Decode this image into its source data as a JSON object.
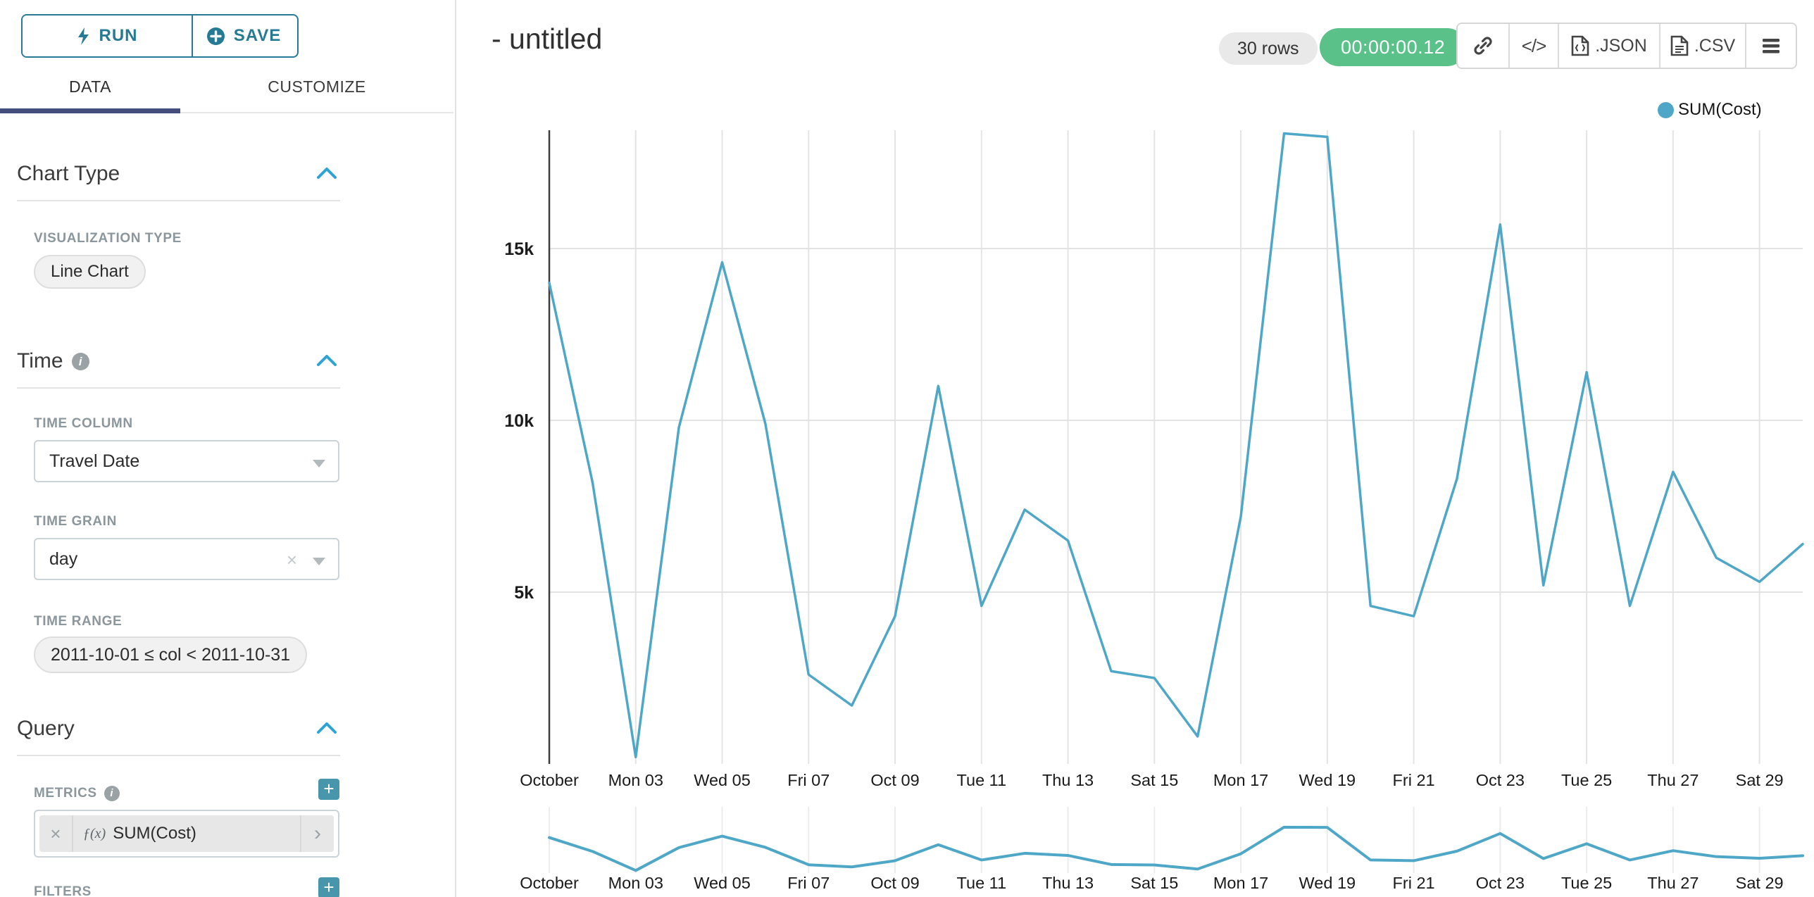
{
  "sidebar": {
    "run_button": "RUN",
    "save_button": "SAVE",
    "tabs": {
      "data": "DATA",
      "customize": "CUSTOMIZE"
    },
    "chart_type_section": {
      "title": "Chart Type",
      "visualization_type_label": "VISUALIZATION TYPE",
      "visualization_type_value": "Line Chart"
    },
    "time_section": {
      "title": "Time",
      "time_column_label": "TIME COLUMN",
      "time_column_value": "Travel Date",
      "time_grain_label": "TIME GRAIN",
      "time_grain_value": "day",
      "time_range_label": "TIME RANGE",
      "time_range_value": "2011-10-01 ≤ col < 2011-10-31"
    },
    "query_section": {
      "title": "Query",
      "metrics_label": "METRICS",
      "metric_function_prefix": "ƒ(x)",
      "metric_value": "SUM(Cost)",
      "filters_label": "FILTERS"
    }
  },
  "header": {
    "title": "- untitled",
    "row_count_badge": "30 rows",
    "query_duration_badge": "00:00:00.12",
    "code_button": "</>",
    "json_export_label": ".JSON",
    "csv_export_label": ".CSV"
  },
  "colors": {
    "accent_teal": "#267a94",
    "series_line": "#4FA7C7",
    "success_green": "#5ac189",
    "tab_underline": "#454e7c"
  },
  "chart_data": {
    "type": "line",
    "title": "- untitled",
    "x_unit": "day of October 2011",
    "x_days": [
      1,
      2,
      3,
      4,
      5,
      6,
      7,
      8,
      9,
      10,
      11,
      12,
      13,
      14,
      15,
      16,
      17,
      18,
      19,
      20,
      21,
      22,
      23,
      24,
      25,
      26,
      27,
      28,
      29,
      30
    ],
    "series": [
      {
        "name": "SUM(Cost)",
        "values": [
          14000,
          8200,
          200,
          9800,
          14600,
          9900,
          2600,
          1700,
          4300,
          11000,
          4600,
          7400,
          6500,
          2700,
          2500,
          800,
          7200,
          18350,
          18250,
          4600,
          4300,
          8300,
          15700,
          5200,
          11400,
          4600,
          8500,
          6000,
          5300,
          6400
        ]
      }
    ],
    "legend_entries": [
      {
        "label": "SUM(Cost)",
        "color": "#4FA7C7"
      }
    ],
    "legend_position": "top-right",
    "x_tick_labels": [
      "October",
      "Mon 03",
      "Wed 05",
      "Fri 07",
      "Oct 09",
      "Tue 11",
      "Thu 13",
      "Sat 15",
      "Mon 17",
      "Wed 19",
      "Fri 21",
      "Oct 23",
      "Tue 25",
      "Thu 27",
      "Sat 29"
    ],
    "x_tick_indices": [
      0,
      2,
      4,
      6,
      8,
      10,
      12,
      14,
      16,
      18,
      20,
      22,
      24,
      26,
      28
    ],
    "y_ticks": [
      {
        "label": "5k",
        "value": 5000
      },
      {
        "label": "10k",
        "value": 10000
      },
      {
        "label": "15k",
        "value": 15000
      }
    ],
    "ylim": [
      0,
      18600
    ],
    "grid": true,
    "has_brush_minichart": true,
    "brush_x_tick_labels": [
      "October",
      "Mon 03",
      "Wed 05",
      "Fri 07",
      "Oct 09",
      "Tue 11",
      "Thu 13",
      "Sat 15",
      "Mon 17",
      "Wed 19",
      "Fri 21",
      "Oct 23",
      "Tue 25",
      "Thu 27",
      "Sat 29"
    ]
  }
}
